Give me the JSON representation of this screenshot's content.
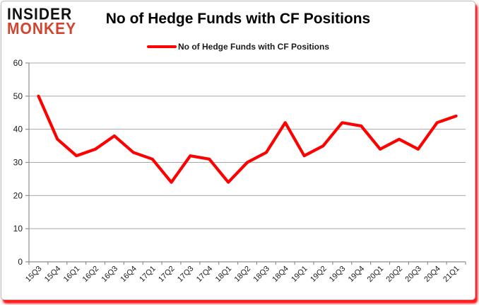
{
  "logo": {
    "line1": "INSIDER",
    "line2": "MONKEY"
  },
  "header": {
    "title": "No of Hedge Funds with CF Positions"
  },
  "legend": {
    "label": "No of Hedge Funds with CF Positions",
    "swatch_color": "#ff0000"
  },
  "colors": {
    "line": "#ff0000",
    "logo_black": "#111111",
    "logo_red": "#d0452f",
    "card_border": "#b6bcc9",
    "grid": "#a8a8a8",
    "axis": "#8e8e8e",
    "tick_text": "#1a1a1a",
    "shadow_red": "#ff0a0a"
  },
  "chart_data": {
    "type": "line",
    "title": "No of Hedge Funds with CF Positions",
    "series_name": "No of Hedge Funds with CF Positions",
    "categories": [
      "15Q3",
      "15Q4",
      "16Q1",
      "16Q2",
      "16Q3",
      "16Q4",
      "17Q1",
      "17Q2",
      "17Q3",
      "17Q4",
      "18Q1",
      "18Q2",
      "18Q3",
      "18Q4",
      "19Q1",
      "19Q2",
      "19Q3",
      "19Q4",
      "20Q1",
      "20Q2",
      "20Q3",
      "20Q4",
      "21Q1"
    ],
    "values": [
      50,
      37,
      32,
      34,
      38,
      33,
      31,
      24,
      32,
      31,
      24,
      30,
      33,
      42,
      32,
      35,
      42,
      41,
      34,
      37,
      34,
      42,
      44
    ],
    "xlabel": "",
    "ylabel": "",
    "ylim": [
      0,
      60
    ],
    "yticks": [
      0,
      10,
      20,
      30,
      40,
      50,
      60
    ],
    "grid": true,
    "legend_position": "top",
    "line_color": "#ff0000",
    "x_label_rotation": -45
  }
}
